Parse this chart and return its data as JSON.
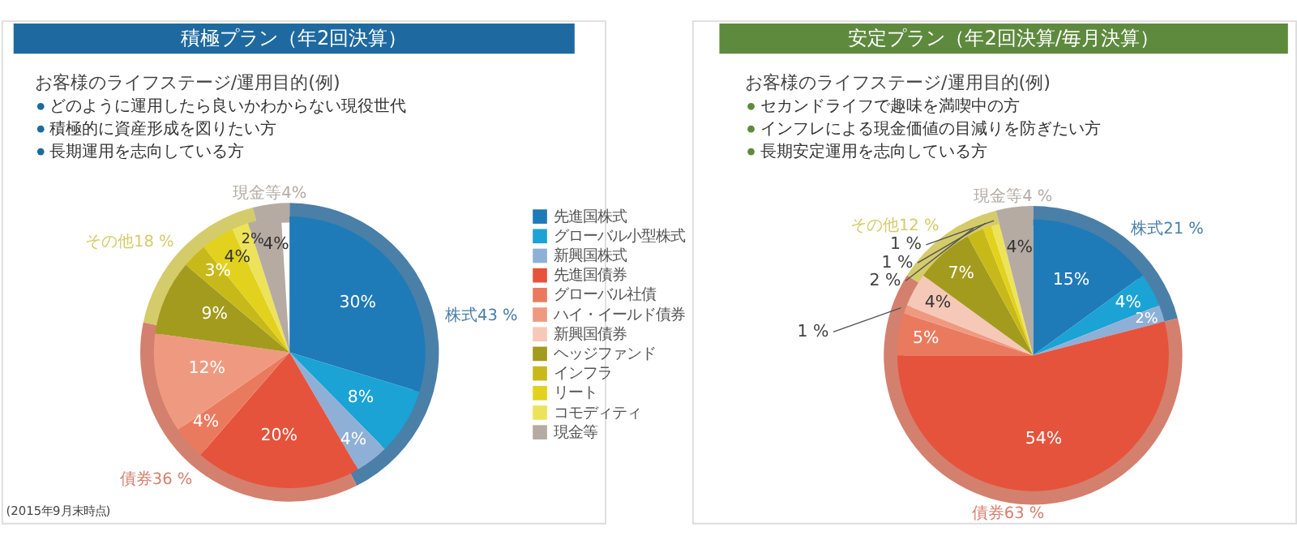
{
  "chart_data": [
    {
      "type": "pie",
      "title": "積極プラン（年2回決算）",
      "subtitle": "お客様のライフステージ/運用目的(例)",
      "annotations": [
        "どのように運用したら良いかわからない現役世代",
        "積極的に資産形成を図りたい方",
        "長期運用を志向している方",
        "(2015年9月末時点)"
      ],
      "legend": "right",
      "categories": [
        "先進国株式",
        "グローバル小型株式",
        "新興国株式",
        "先進国債券",
        "グローバル社債",
        "ハイ・イールド債券",
        "新興国債券",
        "ヘッジファンド",
        "インフラ",
        "リート",
        "コモディティ",
        "現金等"
      ],
      "series": [
        {
          "values": [
            30,
            8,
            4,
            20,
            4,
            12,
            0,
            9,
            3,
            4,
            2,
            4
          ],
          "value_labels": [
            "30%",
            "8%",
            "4%",
            "20%",
            "4%",
            "12%",
            null,
            "9%",
            "3%",
            "4%",
            "2%",
            "4%"
          ],
          "colors": [
            "#1f7ab8",
            "#1aa3d4",
            "#8fb0d6",
            "#e5533d",
            "#ea7a5e",
            "#ef9a80",
            "#f5c8b8",
            "#a39b1e",
            "#c8b91a",
            "#e2d21e",
            "#ede35a",
            "#b5aba2"
          ]
        },
        {
          "type": "donut",
          "values": [
            43,
            null,
            null,
            36,
            null,
            null,
            null,
            18,
            null,
            null,
            null,
            4
          ],
          "value_labels": [
            "株式43 %",
            null,
            null,
            "債券36 %",
            null,
            null,
            null,
            "その他18 %",
            null,
            null,
            null,
            "現金等4%"
          ],
          "colors": [
            "#4a7fa8",
            null,
            null,
            "#d4806e",
            null,
            null,
            null,
            "#d4cb6a",
            null,
            null,
            null,
            "#b5aba2"
          ]
        }
      ]
    },
    {
      "type": "pie",
      "title": "安定プラン（年2回決算/毎月決算）",
      "subtitle": "お客様のライフステージ/運用目的(例)",
      "annotations": [
        "セカンドライフで趣味を満喫中の方",
        "インフレによる現金価値の目減りを防ぎたい方",
        "長期安定運用を志向している方"
      ],
      "categories": [
        null,
        null,
        null,
        null,
        null,
        null,
        null,
        null,
        null,
        null,
        null,
        null
      ],
      "series": [
        {
          "values": [
            15,
            4,
            2,
            54,
            5,
            1,
            4,
            7,
            2,
            1,
            1,
            4
          ],
          "value_labels": [
            "15%",
            "4%",
            "2%",
            "54%",
            "5%",
            "1 %",
            "4%",
            "7%",
            "2 %",
            "1 %",
            "1 %",
            "4%"
          ],
          "colors": [
            "#1f7ab8",
            "#1aa3d4",
            "#8fb0d6",
            "#e5533d",
            "#ea7a5e",
            "#ef9a80",
            "#f5c8b8",
            "#a39b1e",
            "#c8b91a",
            "#e2d21e",
            "#ede35a",
            "#b5aba2"
          ]
        },
        {
          "type": "donut",
          "values": [
            21,
            null,
            null,
            63,
            null,
            null,
            null,
            12,
            null,
            null,
            null,
            4
          ],
          "value_labels": [
            "株式21 %",
            null,
            null,
            "債券63 %",
            null,
            null,
            null,
            "その他12 %",
            null,
            null,
            null,
            "現金等4 %"
          ],
          "colors": [
            "#4a7fa8",
            null,
            null,
            "#d4806e",
            null,
            null,
            null,
            "#d4cb6a",
            null,
            null,
            null,
            "#b5aba2"
          ]
        }
      ]
    }
  ]
}
